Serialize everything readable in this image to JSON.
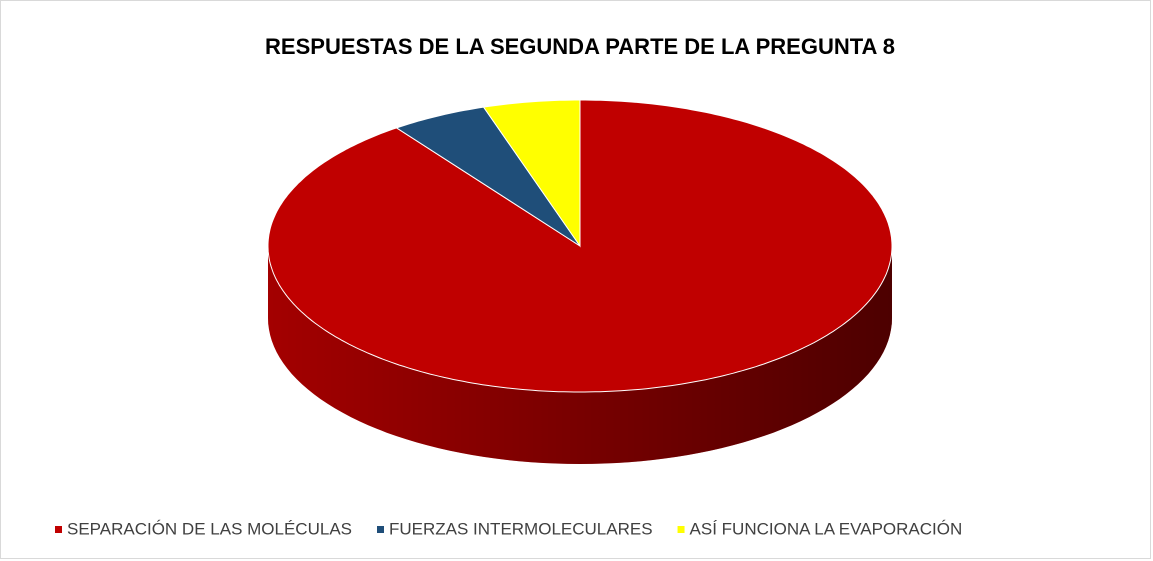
{
  "chart_data": {
    "type": "pie",
    "title": "RESPUESTAS DE LA SEGUNDA PARTE DE LA PREGUNTA 8",
    "categories": [
      "SEPARACIÓN DE LAS MOLÉCULAS",
      "FUERZAS INTERMOLECULARES",
      "ASÍ FUNCIONA LA EVAPORACIÓN"
    ],
    "values": [
      90,
      5,
      5
    ],
    "colors": [
      "#c00000",
      "#1f4e79",
      "#ffff00"
    ],
    "legend": "bottom"
  }
}
